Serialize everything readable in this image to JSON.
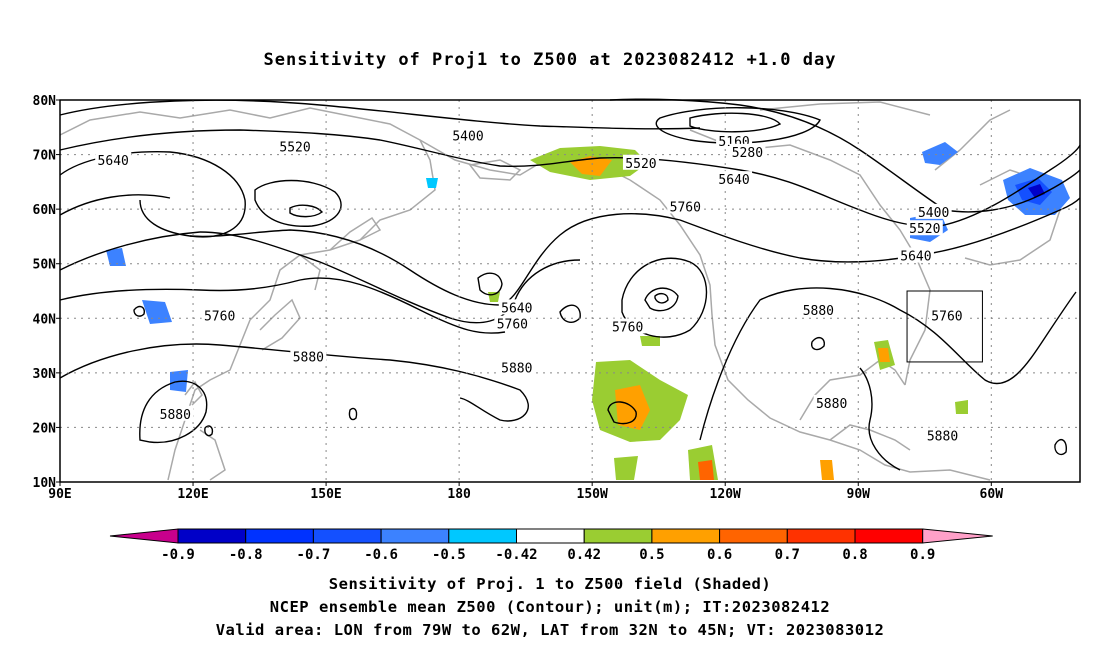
{
  "title": "Sensitivity of Proj1 to Z500 at 2023082412 +1.0 day",
  "map": {
    "lat_labels": [
      "80N",
      "70N",
      "60N",
      "50N",
      "40N",
      "30N",
      "20N",
      "10N"
    ],
    "lon_labels": [
      "90E",
      "120E",
      "150E",
      "180",
      "150W",
      "120W",
      "90W",
      "60W"
    ],
    "contour_labels": [
      {
        "text": "5640",
        "lon": 102,
        "lat": 69
      },
      {
        "text": "5520",
        "lon": 143,
        "lat": 71.5
      },
      {
        "text": "5400",
        "lon": 182,
        "lat": 73.5
      },
      {
        "text": "5160",
        "lon": 242,
        "lat": 72.5
      },
      {
        "text": "5280",
        "lon": 245,
        "lat": 70.5
      },
      {
        "text": "5520",
        "lon": 221,
        "lat": 68.5
      },
      {
        "text": "5640",
        "lon": 242,
        "lat": 65.5
      },
      {
        "text": "5760",
        "lon": 231,
        "lat": 60.5
      },
      {
        "text": "5400",
        "lon": 287,
        "lat": 59.5
      },
      {
        "text": "5520",
        "lon": 285,
        "lat": 56.5
      },
      {
        "text": "5640",
        "lon": 283,
        "lat": 51.5
      },
      {
        "text": "5760",
        "lon": 290,
        "lat": 40.5
      },
      {
        "text": "5880",
        "lon": 261,
        "lat": 41.5
      },
      {
        "text": "5640",
        "lon": 193,
        "lat": 42
      },
      {
        "text": "5760",
        "lon": 192,
        "lat": 39
      },
      {
        "text": "5760",
        "lon": 218,
        "lat": 38.5
      },
      {
        "text": "5760",
        "lon": 126,
        "lat": 40.5
      },
      {
        "text": "5880",
        "lon": 146,
        "lat": 33
      },
      {
        "text": "5880",
        "lon": 193,
        "lat": 31
      },
      {
        "text": "5880",
        "lon": 116,
        "lat": 22.5
      },
      {
        "text": "5880",
        "lon": 264,
        "lat": 24.5
      },
      {
        "text": "5880",
        "lon": 289,
        "lat": 18.5
      }
    ],
    "valid_box": {
      "lon_min": -79,
      "lon_max": -62,
      "lat_min": 32,
      "lat_max": 45
    }
  },
  "colorbar": {
    "labels": [
      "-0.9",
      "-0.8",
      "-0.7",
      "-0.6",
      "-0.5",
      "-0.42",
      "0.42",
      "0.5",
      "0.6",
      "0.7",
      "0.8",
      "0.9"
    ],
    "colors": [
      "#0000c8",
      "#0032ff",
      "#1450ff",
      "#3c82ff",
      "#00c8ff",
      "#ffffff",
      "#9acd32",
      "#ffa000",
      "#ff6400",
      "#ff3200",
      "#ff0000"
    ],
    "low_extend_color": "#c8008c",
    "high_extend_color": "#ffa0c8"
  },
  "captions": {
    "line1": "Sensitivity of Proj. 1 to Z500 field (Shaded)",
    "line2": "NCEP ensemble mean Z500 (Contour); unit(m); IT:2023082412",
    "line3": "Valid area: LON from 79W to 62W, LAT from 32N to 45N; VT: 2023083012"
  }
}
